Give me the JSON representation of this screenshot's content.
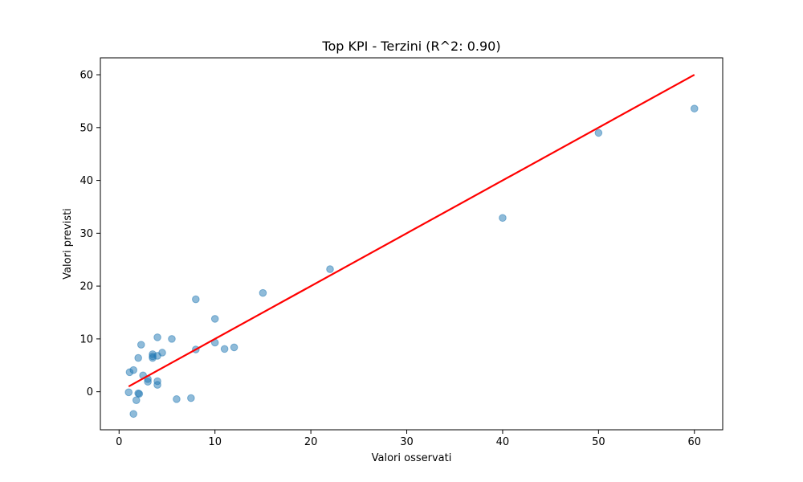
{
  "chart_data": {
    "type": "scatter",
    "title": "Top KPI - Terzini (R^2: 0.90)",
    "xlabel": "Valori osservati",
    "ylabel": "Valori previsti",
    "xlim": [
      -1.95,
      62.95
    ],
    "ylim": [
      -7.2,
      63.2
    ],
    "xticks": [
      0,
      10,
      20,
      30,
      40,
      50,
      60
    ],
    "yticks": [
      0,
      10,
      20,
      30,
      40,
      50,
      60
    ],
    "grid": false,
    "legend": "none",
    "point_color": "#1f77b4",
    "line_color": "#ff0000",
    "points": [
      {
        "x": 1.0,
        "y": -0.1
      },
      {
        "x": 1.1,
        "y": 3.7
      },
      {
        "x": 1.5,
        "y": 4.1
      },
      {
        "x": 1.5,
        "y": -4.2
      },
      {
        "x": 1.8,
        "y": -1.6
      },
      {
        "x": 2.0,
        "y": 6.4
      },
      {
        "x": 2.0,
        "y": -0.3
      },
      {
        "x": 2.1,
        "y": -0.4
      },
      {
        "x": 2.3,
        "y": 8.9
      },
      {
        "x": 2.5,
        "y": 3.1
      },
      {
        "x": 3.0,
        "y": 2.4
      },
      {
        "x": 3.0,
        "y": 1.9
      },
      {
        "x": 3.5,
        "y": 7.1
      },
      {
        "x": 3.5,
        "y": 6.7
      },
      {
        "x": 3.5,
        "y": 6.4
      },
      {
        "x": 4.0,
        "y": 10.3
      },
      {
        "x": 4.0,
        "y": 6.8
      },
      {
        "x": 4.0,
        "y": 2.0
      },
      {
        "x": 4.0,
        "y": 1.3
      },
      {
        "x": 4.5,
        "y": 7.4
      },
      {
        "x": 5.5,
        "y": 10.0
      },
      {
        "x": 6.0,
        "y": -1.4
      },
      {
        "x": 7.5,
        "y": -1.2
      },
      {
        "x": 8.0,
        "y": 17.5
      },
      {
        "x": 8.0,
        "y": 8.0
      },
      {
        "x": 10.0,
        "y": 13.8
      },
      {
        "x": 10.0,
        "y": 9.3
      },
      {
        "x": 11.0,
        "y": 8.1
      },
      {
        "x": 12.0,
        "y": 8.4
      },
      {
        "x": 15.0,
        "y": 18.7
      },
      {
        "x": 22.0,
        "y": 23.2
      },
      {
        "x": 40.0,
        "y": 32.9
      },
      {
        "x": 50.0,
        "y": 49.0
      },
      {
        "x": 60.0,
        "y": 53.6
      }
    ],
    "fit_line": {
      "x": [
        1,
        60
      ],
      "y": [
        1,
        60
      ]
    }
  }
}
